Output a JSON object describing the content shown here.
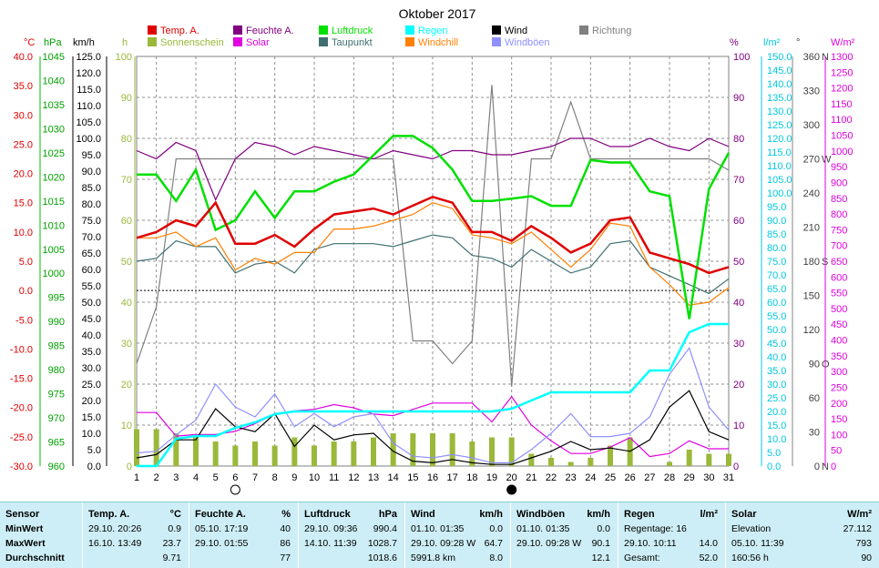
{
  "title": "Oktober 2017",
  "axes": {
    "temp_unit": "°C",
    "hpa_unit": "hPa",
    "kmh_unit": "km/h",
    "h_unit": "h",
    "pct_unit": "%",
    "rain_unit": "l/m²",
    "deg_unit": "°",
    "solar_unit": "W/m²",
    "temp_ticks": [
      "40.0",
      "35.0",
      "30.0",
      "25.0",
      "20.0",
      "15.0",
      "10.0",
      "5.0",
      "0.0",
      "-5.0",
      "-10.0",
      "-15.0",
      "-20.0",
      "-25.0",
      "-30.0"
    ],
    "hpa_ticks": [
      "1045",
      "1040",
      "1035",
      "1030",
      "1025",
      "1020",
      "1015",
      "1010",
      "1005",
      "1000",
      "995",
      "990",
      "985",
      "980",
      "975",
      "970",
      "965",
      "960"
    ],
    "kmh_ticks": [
      "125.0",
      "120.0",
      "115.0",
      "110.0",
      "105.0",
      "100.0",
      "95.0",
      "90.0",
      "85.0",
      "80.0",
      "75.0",
      "70.0",
      "65.0",
      "60.0",
      "55.0",
      "50.0",
      "45.0",
      "40.0",
      "35.0",
      "30.0",
      "25.0",
      "20.0",
      "15.0",
      "10.0",
      "5.0",
      "0.0"
    ],
    "h_ticks": [
      "100",
      "90",
      "80",
      "70",
      "60",
      "50",
      "40",
      "30",
      "20",
      "10",
      "0"
    ],
    "pct_ticks": [
      "100",
      "90",
      "80",
      "70",
      "60",
      "50",
      "40",
      "30",
      "20",
      "10",
      "0"
    ],
    "rain_ticks": [
      "150.0",
      "145.0",
      "140.0",
      "135.0",
      "130.0",
      "125.0",
      "120.0",
      "115.0",
      "110.0",
      "105.0",
      "100.0",
      "95.0",
      "90.0",
      "85.0",
      "80.0",
      "75.0",
      "70.0",
      "65.0",
      "60.0",
      "55.0",
      "50.0",
      "45.0",
      "40.0",
      "35.0",
      "30.0",
      "25.0",
      "20.0",
      "15.0",
      "10.0",
      "5.0",
      "0.0"
    ],
    "deg_ticks": [
      "360",
      "330",
      "300",
      "270",
      "240",
      "210",
      "180",
      "150",
      "120",
      "90",
      "60",
      "30",
      "0"
    ],
    "dir_letters": [
      "N",
      "W",
      "S",
      "O",
      "N"
    ],
    "solar_ticks": [
      "1300",
      "1250",
      "1200",
      "1150",
      "1100",
      "1050",
      "1000",
      "950",
      "900",
      "850",
      "800",
      "750",
      "700",
      "650",
      "600",
      "550",
      "500",
      "450",
      "400",
      "350",
      "300",
      "250",
      "200",
      "150",
      "100",
      "50",
      "0"
    ],
    "x_ticks": [
      "1",
      "2",
      "3",
      "4",
      "5",
      "6",
      "7",
      "8",
      "9",
      "10",
      "11",
      "12",
      "13",
      "14",
      "15",
      "16",
      "17",
      "18",
      "19",
      "20",
      "21",
      "22",
      "23",
      "24",
      "25",
      "26",
      "27",
      "28",
      "29",
      "30",
      "31"
    ]
  },
  "legend": [
    {
      "label": "Temp. A.",
      "color": "#e00000"
    },
    {
      "label": "Sonnenschein",
      "color": "#9ab83a"
    },
    {
      "label": "Feuchte A.",
      "color": "#800080"
    },
    {
      "label": "Solar",
      "color": "#e000e0"
    },
    {
      "label": "Luftdruck",
      "color": "#00e000"
    },
    {
      "label": "Taupunkt",
      "color": "#407070"
    },
    {
      "label": "Regen",
      "color": "#00ffff"
    },
    {
      "label": "Windchill",
      "color": "#ff8000"
    },
    {
      "label": "Wind",
      "color": "#000000"
    },
    {
      "label": "Windböen",
      "color": "#9090ff"
    },
    {
      "label": "Richtung",
      "color": "#808080"
    }
  ],
  "moon": {
    "full_day": 6,
    "new_day": 20
  },
  "chart_data": {
    "type": "line",
    "title": "Oktober 2017",
    "x": [
      1,
      2,
      3,
      4,
      5,
      6,
      7,
      8,
      9,
      10,
      11,
      12,
      13,
      14,
      15,
      16,
      17,
      18,
      19,
      20,
      21,
      22,
      23,
      24,
      25,
      26,
      27,
      28,
      29,
      30,
      31
    ],
    "temp_range": [
      -30,
      40
    ],
    "pressure_range": [
      960,
      1045
    ],
    "wind_range": [
      0,
      125
    ],
    "humidity_range": [
      0,
      100
    ],
    "rain_range": [
      0,
      150
    ],
    "direction_range": [
      0,
      360
    ],
    "solar_range": [
      0,
      1300
    ],
    "sunshine_range": [
      0,
      100
    ],
    "series": [
      {
        "name": "Temp. A.",
        "axis": "temp",
        "color": "#e00000",
        "values": [
          9.0,
          10.0,
          12.0,
          11.0,
          15.0,
          8.0,
          8.0,
          9.5,
          7.5,
          10.5,
          13.0,
          13.5,
          14.0,
          13.0,
          14.5,
          16.0,
          15.0,
          10.0,
          10.0,
          8.5,
          11.0,
          9.0,
          6.5,
          8.0,
          12.0,
          12.5,
          6.5,
          5.5,
          4.5,
          3.0,
          4.0
        ]
      },
      {
        "name": "Feuchte A.",
        "axis": "humidity",
        "color": "#800080",
        "values": [
          77,
          75,
          79,
          77,
          65,
          75,
          79,
          78,
          76,
          78,
          77,
          76,
          75,
          77,
          76,
          75,
          77,
          77,
          76,
          76,
          77,
          78,
          80,
          80,
          78,
          78,
          80,
          78,
          77,
          80,
          78
        ]
      },
      {
        "name": "Luftdruck",
        "axis": "pressure",
        "color": "#00e000",
        "values": [
          1020.5,
          1020.5,
          1015.0,
          1021.5,
          1009.0,
          1011.0,
          1017.0,
          1011.5,
          1017.0,
          1017.0,
          1019.0,
          1020.5,
          1024.5,
          1028.5,
          1028.5,
          1026.0,
          1021.5,
          1015.0,
          1015.0,
          1015.5,
          1016.0,
          1014.0,
          1014.0,
          1023.5,
          1023.0,
          1023.0,
          1017.0,
          1016.0,
          990.5,
          1017.5,
          1025.0
        ]
      },
      {
        "name": "Taupunkt",
        "axis": "temp",
        "color": "#407070",
        "values": [
          5.0,
          5.5,
          8.5,
          7.5,
          7.5,
          3.0,
          4.5,
          5.0,
          3.0,
          7.0,
          8.0,
          8.0,
          8.0,
          7.5,
          8.5,
          9.5,
          9.0,
          6.0,
          5.5,
          4.0,
          7.0,
          5.0,
          3.0,
          4.0,
          8.0,
          8.5,
          4.0,
          2.5,
          1.0,
          -0.5,
          2.0
        ]
      },
      {
        "name": "Windchill",
        "axis": "temp",
        "color": "#ff8000",
        "values": [
          9.0,
          9.0,
          10.0,
          7.5,
          9.0,
          3.5,
          5.5,
          4.5,
          6.5,
          6.5,
          10.5,
          10.5,
          11.0,
          12.0,
          13.0,
          15.0,
          14.0,
          9.5,
          9.0,
          8.0,
          10.0,
          7.0,
          4.0,
          7.0,
          11.5,
          11.0,
          4.0,
          1.0,
          -2.5,
          -2.0,
          0.5
        ]
      },
      {
        "name": "Regen",
        "axis": "rain",
        "color": "#00ffff",
        "values": [
          0.0,
          0.0,
          10.0,
          11.0,
          11.0,
          14.0,
          16.0,
          19.0,
          20.0,
          20.0,
          20.0,
          20.0,
          20.0,
          20.0,
          20.0,
          20.0,
          20.0,
          20.0,
          20.0,
          21.0,
          24.0,
          27.0,
          27.0,
          27.0,
          27.0,
          27.0,
          35.0,
          35.0,
          49.0,
          52.0,
          52.0
        ]
      },
      {
        "name": "Wind",
        "axis": "wind",
        "color": "#000000",
        "values": [
          2.5,
          3.5,
          8.0,
          8.0,
          17.5,
          12.0,
          10.5,
          16.0,
          6.0,
          12.5,
          8.0,
          9.5,
          10.0,
          4.5,
          1.5,
          1.0,
          2.0,
          1.0,
          0.5,
          0.5,
          2.5,
          4.5,
          7.5,
          5.0,
          5.5,
          4.5,
          8.0,
          18.0,
          23.0,
          10.5,
          8.0
        ]
      },
      {
        "name": "Windböen",
        "axis": "wind",
        "color": "#9090ff",
        "values": [
          4.0,
          4.5,
          9.5,
          14.0,
          25.0,
          18.0,
          15.0,
          22.0,
          12.0,
          16.0,
          12.0,
          15.0,
          16.0,
          7.0,
          3.0,
          2.5,
          3.5,
          2.5,
          1.0,
          1.0,
          5.0,
          10.0,
          16.0,
          9.0,
          9.0,
          10.0,
          15.0,
          28.0,
          36.0,
          18.0,
          11.0
        ]
      },
      {
        "name": "Richtung",
        "axis": "direction",
        "color": "#808080",
        "values": [
          90,
          140,
          270,
          270,
          270,
          270,
          270,
          270,
          270,
          270,
          270,
          270,
          270,
          270,
          110,
          110,
          90,
          110,
          335,
          70,
          270,
          270,
          320,
          270,
          270,
          270,
          270,
          270,
          270,
          270,
          260
        ]
      },
      {
        "name": "Solar",
        "axis": "solar",
        "color": "#e000e0",
        "values": [
          170,
          170,
          95,
          100,
          100,
          110,
          135,
          165,
          175,
          180,
          195,
          185,
          165,
          160,
          180,
          200,
          200,
          200,
          140,
          220,
          130,
          80,
          40,
          40,
          60,
          90,
          30,
          40,
          80,
          55,
          55
        ]
      },
      {
        "name": "Sonnenschein",
        "axis": "sunshine",
        "type": "bar",
        "color": "#9ab83a",
        "values": [
          9,
          9,
          8,
          7,
          6,
          5,
          6,
          5,
          7,
          5,
          6,
          6,
          7,
          8,
          8,
          8,
          8,
          6,
          7,
          7,
          3,
          2,
          1,
          2,
          5,
          7,
          0,
          1,
          4,
          3,
          3
        ]
      }
    ]
  },
  "stats": [
    {
      "name": "Sensor",
      "unit": "",
      "rows": [
        [
          "MinWert",
          ""
        ],
        [
          "MaxWert",
          ""
        ],
        [
          "Durchschnitt",
          ""
        ]
      ]
    },
    {
      "name": "Temp. A.",
      "unit": "°C",
      "rows": [
        [
          "29.10.  20:26",
          "0.9"
        ],
        [
          "16.10.  13:49",
          "23.7"
        ],
        [
          "",
          "9.71"
        ]
      ]
    },
    {
      "name": "Feuchte A.",
      "unit": "%",
      "rows": [
        [
          "05.10.  17:19",
          "40"
        ],
        [
          "29.10.  01:55",
          "86"
        ],
        [
          "",
          "77"
        ]
      ]
    },
    {
      "name": "Luftdruck",
      "unit": "hPa",
      "rows": [
        [
          "29.10.  09:36",
          "990.4"
        ],
        [
          "14.10.  11:39",
          "1028.7"
        ],
        [
          "",
          "1018.6"
        ]
      ]
    },
    {
      "name": "Wind",
      "unit": "km/h",
      "rows": [
        [
          "01.10.  01:35",
          "0.0"
        ],
        [
          "29.10.  09:28  W",
          "64.7"
        ],
        [
          "5991.8 km",
          "8.0"
        ]
      ]
    },
    {
      "name": "Windböen",
      "unit": "km/h",
      "rows": [
        [
          "01.10.  01:35",
          "0.0"
        ],
        [
          "29.10.  09:28  W",
          "90.1"
        ],
        [
          "",
          "12.1"
        ]
      ]
    },
    {
      "name": "Regen",
      "unit": "l/m²",
      "rows": [
        [
          "Regentage: 16",
          ""
        ],
        [
          "29.10.  10:11",
          "14.0"
        ],
        [
          "Gesamt:",
          "52.0"
        ]
      ]
    },
    {
      "name": "Solar",
      "unit": "W/m²",
      "rows": [
        [
          "Elevation",
          "27.112"
        ],
        [
          "05.10.  11:39",
          "793"
        ],
        [
          "160:56 h",
          "90"
        ]
      ]
    }
  ]
}
